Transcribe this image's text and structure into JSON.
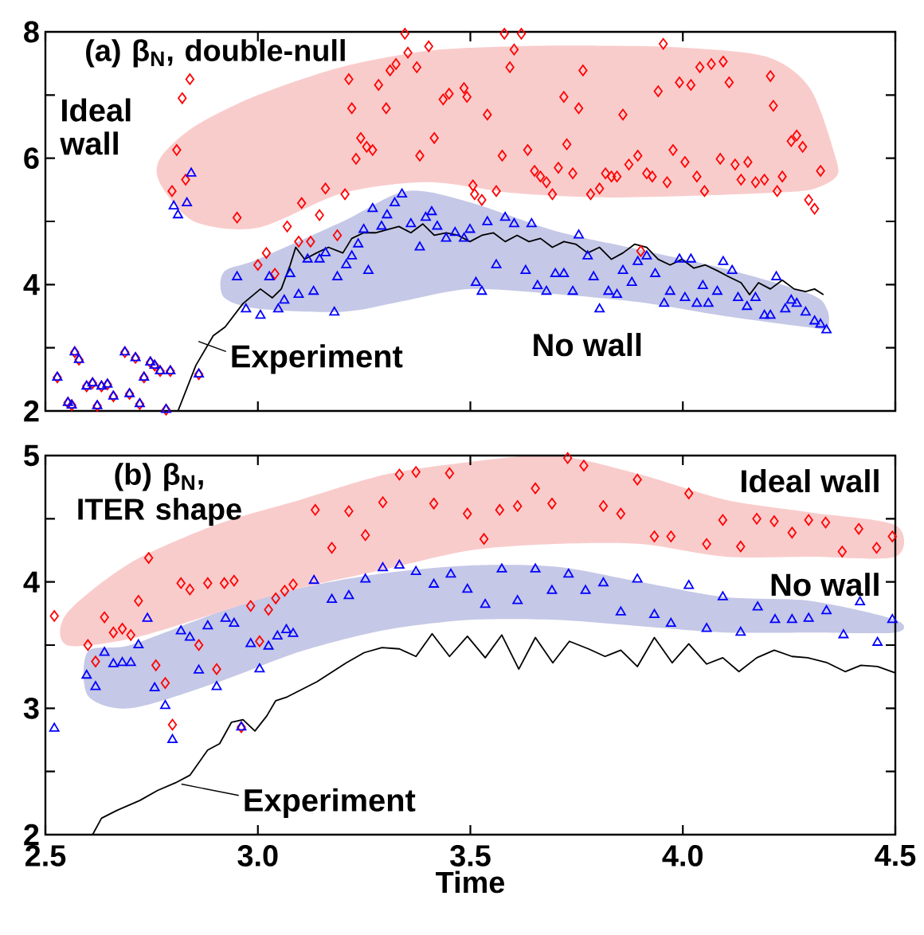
{
  "chart_data": [
    {
      "type": "scatter",
      "title": "(a) β$_{N}$, double-null",
      "annotations": [
        "Ideal wall",
        "No wall",
        "Experiment"
      ],
      "xlim": [
        2.5,
        4.5
      ],
      "ylim": [
        2,
        8
      ],
      "tick_labels": "y",
      "xticks": [
        {
          "value": 2.5,
          "label": null
        },
        {
          "value": 3.0,
          "label": null
        },
        {
          "value": 3.5,
          "label": null
        },
        {
          "value": 4.0,
          "label": null
        },
        {
          "value": 4.5,
          "label": null
        }
      ],
      "yticks": [
        2,
        {
          "value": 3,
          "label": null
        },
        4,
        {
          "value": 5,
          "label": null
        },
        6,
        {
          "value": 7,
          "label": null
        },
        8
      ],
      "series": [
        {
          "color": "#ff0000",
          "marker": "diamond",
          "x": [
            2.528,
            2.553,
            2.562,
            2.569,
            2.579,
            2.597,
            2.611,
            2.622,
            2.632,
            2.646,
            2.66,
            2.687,
            2.698,
            2.712,
            2.722,
            2.732,
            2.747,
            2.757,
            2.77,
            2.784,
            2.794,
            2.861,
            2.798,
            2.809,
            2.822,
            2.84,
            2.83,
            2.951,
            3.0,
            3.02,
            3.04,
            3.069,
            3.096,
            3.103,
            3.124,
            3.145,
            3.159,
            3.187,
            3.205,
            3.214,
            3.221,
            3.231,
            3.242,
            3.256,
            3.27,
            3.284,
            3.302,
            3.311,
            3.325,
            3.346,
            3.353,
            3.374,
            3.381,
            3.402,
            3.415,
            3.436,
            3.45,
            3.485,
            3.492,
            3.506,
            3.51,
            3.527,
            3.54,
            3.561,
            3.575,
            3.58,
            3.593,
            3.603,
            3.62,
            3.635,
            3.651,
            3.665,
            3.679,
            3.693,
            3.707,
            3.72,
            3.727,
            3.741,
            3.755,
            3.765,
            3.783,
            3.804,
            3.818,
            3.832,
            3.845,
            3.859,
            3.873,
            3.894,
            3.901,
            3.915,
            3.928,
            3.942,
            3.954,
            3.963,
            3.977,
            3.992,
            4.005,
            4.019,
            4.033,
            4.04,
            4.051,
            4.067,
            4.088,
            4.095,
            4.109,
            4.123,
            4.137,
            4.153,
            4.171,
            4.192,
            4.206,
            4.213,
            4.222,
            4.234,
            4.255,
            4.268,
            4.282,
            4.296,
            4.31,
            4.324
          ],
          "values": [
            2.53,
            2.13,
            2.09,
            2.93,
            2.81,
            2.39,
            2.44,
            2.08,
            2.39,
            2.42,
            2.23,
            2.93,
            2.27,
            2.84,
            2.11,
            2.53,
            2.77,
            2.72,
            2.63,
            2.02,
            2.63,
            2.58,
            5.48,
            6.13,
            6.95,
            7.25,
            5.66,
            5.06,
            4.31,
            4.5,
            4.17,
            4.92,
            4.68,
            5.29,
            4.68,
            5.1,
            5.52,
            4.78,
            5.43,
            7.25,
            6.79,
            5.99,
            6.32,
            6.18,
            6.13,
            7.16,
            6.79,
            7.39,
            7.49,
            7.97,
            7.67,
            7.44,
            6.04,
            7.77,
            6.32,
            6.93,
            7.02,
            7.11,
            6.97,
            5.57,
            5.43,
            5.34,
            6.69,
            5.48,
            6.04,
            7.97,
            7.44,
            7.72,
            7.97,
            6.13,
            5.8,
            5.71,
            5.62,
            5.43,
            5.85,
            6.97,
            6.22,
            5.76,
            6.79,
            7.39,
            5.43,
            5.52,
            5.76,
            5.71,
            5.71,
            6.69,
            5.9,
            6.04,
            4.53,
            5.76,
            5.71,
            7.06,
            7.81,
            5.62,
            6.13,
            7.2,
            5.94,
            7.16,
            5.71,
            7.44,
            5.48,
            7.49,
            5.99,
            7.53,
            7.2,
            5.9,
            5.66,
            5.94,
            5.62,
            5.66,
            7.3,
            6.83,
            5.48,
            5.71,
            6.27,
            6.36,
            6.18,
            5.34,
            5.2,
            5.8
          ]
        },
        {
          "color": "#0000ff",
          "marker": "triangle",
          "x": [
            2.528,
            2.553,
            2.562,
            2.569,
            2.579,
            2.597,
            2.611,
            2.622,
            2.632,
            2.646,
            2.66,
            2.687,
            2.698,
            2.712,
            2.722,
            2.732,
            2.747,
            2.757,
            2.77,
            2.784,
            2.794,
            2.861,
            2.802,
            2.812,
            2.833,
            2.843,
            2.951,
            2.972,
            3.006,
            3.027,
            3.048,
            3.062,
            3.076,
            3.096,
            3.117,
            3.131,
            3.145,
            3.159,
            3.18,
            3.187,
            3.208,
            3.221,
            3.236,
            3.249,
            3.26,
            3.27,
            3.291,
            3.304,
            3.322,
            3.339,
            3.36,
            3.381,
            3.395,
            3.409,
            3.422,
            3.443,
            3.464,
            3.485,
            3.499,
            3.513,
            3.527,
            3.54,
            3.561,
            3.582,
            3.603,
            3.63,
            3.644,
            3.658,
            3.679,
            3.7,
            3.72,
            3.741,
            3.755,
            3.776,
            3.79,
            3.804,
            3.825,
            3.845,
            3.859,
            3.88,
            3.894,
            3.915,
            3.935,
            3.956,
            3.97,
            3.992,
            4.005,
            4.019,
            4.033,
            4.047,
            4.06,
            4.081,
            4.095,
            4.116,
            4.13,
            4.151,
            4.171,
            4.192,
            4.206,
            4.22,
            4.241,
            4.255,
            4.268,
            4.289,
            4.31,
            4.324,
            4.338
          ],
          "values": [
            2.53,
            2.13,
            2.09,
            2.93,
            2.81,
            2.39,
            2.44,
            2.08,
            2.39,
            2.42,
            2.23,
            2.93,
            2.27,
            2.84,
            2.11,
            2.53,
            2.77,
            2.72,
            2.63,
            2.02,
            2.63,
            2.58,
            5.24,
            5.1,
            5.29,
            5.76,
            4.12,
            3.61,
            3.51,
            4.12,
            3.61,
            3.75,
            4.17,
            3.84,
            4.4,
            3.89,
            4.4,
            4.5,
            3.56,
            4.12,
            4.31,
            4.45,
            4.64,
            4.87,
            4.22,
            5.2,
            4.92,
            5.1,
            5.29,
            5.43,
            4.96,
            4.59,
            5.06,
            5.15,
            4.92,
            4.73,
            4.82,
            4.73,
            4.87,
            4.03,
            3.89,
            4.99,
            4.31,
            5.06,
            4.96,
            4.22,
            4.96,
            3.98,
            3.89,
            4.17,
            4.17,
            3.89,
            4.78,
            4.45,
            4.12,
            3.61,
            3.89,
            3.84,
            4.22,
            4.03,
            4.36,
            4.45,
            4.17,
            3.7,
            3.89,
            4.4,
            3.79,
            4.4,
            3.7,
            3.98,
            3.7,
            3.89,
            4.36,
            4.22,
            3.79,
            3.65,
            3.79,
            3.51,
            3.51,
            4.12,
            3.61,
            3.75,
            3.7,
            3.56,
            3.42,
            3.37,
            3.28
          ]
        },
        {
          "type": "line",
          "color": "#000000",
          "x": [
            2.812,
            2.854,
            2.895,
            2.923,
            2.965,
            3.006,
            3.034,
            3.055,
            3.076,
            3.089,
            3.11,
            3.138,
            3.166,
            3.2,
            3.221,
            3.249,
            3.277,
            3.304,
            3.332,
            3.36,
            3.388,
            3.415,
            3.443,
            3.471,
            3.499,
            3.527,
            3.554,
            3.582,
            3.61,
            3.638,
            3.665,
            3.693,
            3.72,
            3.748,
            3.776,
            3.804,
            3.832,
            3.859,
            3.887,
            3.915,
            3.942,
            3.97,
            3.998,
            4.026,
            4.053,
            4.081,
            4.109,
            4.137,
            4.157,
            4.178,
            4.206,
            4.234,
            4.262,
            4.289,
            4.31,
            4.331
          ],
          "values": [
            2.0,
            2.72,
            3.19,
            3.33,
            3.7,
            3.93,
            3.79,
            3.93,
            4.31,
            4.59,
            4.4,
            4.5,
            4.59,
            4.5,
            4.73,
            4.82,
            4.82,
            4.87,
            4.92,
            4.82,
            4.96,
            4.78,
            4.82,
            4.78,
            4.68,
            4.78,
            4.82,
            4.68,
            4.78,
            4.68,
            4.73,
            4.59,
            4.68,
            4.64,
            4.5,
            4.59,
            4.4,
            4.5,
            4.64,
            4.59,
            4.4,
            4.31,
            4.4,
            4.26,
            4.31,
            4.22,
            4.12,
            4.03,
            3.84,
            4.03,
            3.93,
            4.07,
            3.93,
            3.89,
            3.93,
            3.84
          ]
        }
      ]
    },
    {
      "type": "scatter",
      "title": "(b) β$_{N}$, ITER shape",
      "annotations": [
        "Ideal wall",
        "No wall",
        "Experiment"
      ],
      "xlabel": "Time",
      "xlim": [
        2.5,
        4.5
      ],
      "ylim": [
        2,
        5
      ],
      "xticks": [
        {
          "value": 2.5,
          "label": "2.5"
        },
        {
          "value": 3.0,
          "label": "3.0"
        },
        {
          "value": 3.5,
          "label": "3.5"
        },
        {
          "value": 4.0,
          "label": "4.0"
        },
        {
          "value": 4.5,
          "label": "4.5"
        }
      ],
      "yticks": [
        2,
        {
          "value": 2.5,
          "label": null
        },
        3,
        {
          "value": 3.5,
          "label": null
        },
        4,
        {
          "value": 4.5,
          "label": null
        },
        5
      ],
      "series": [
        {
          "color": "#ff0000",
          "marker": "diamond",
          "x": [
            2.521,
            2.6,
            2.618,
            2.639,
            2.66,
            2.681,
            2.701,
            2.719,
            2.743,
            2.76,
            2.782,
            2.799,
            2.819,
            2.84,
            2.861,
            2.882,
            2.903,
            2.921,
            2.944,
            2.961,
            2.983,
            3.004,
            3.025,
            3.042,
            3.063,
            3.083,
            3.135,
            3.174,
            3.214,
            3.253,
            3.294,
            3.333,
            3.372,
            3.414,
            3.451,
            3.493,
            3.532,
            3.569,
            3.611,
            3.653,
            3.692,
            3.729,
            3.767,
            3.813,
            3.854,
            3.893,
            3.933,
            3.972,
            4.014,
            4.056,
            4.094,
            4.136,
            4.174,
            4.215,
            4.257,
            4.296,
            4.336,
            4.375,
            4.414,
            4.456,
            4.493
          ],
          "values": [
            3.73,
            3.5,
            3.37,
            3.72,
            3.6,
            3.63,
            3.58,
            3.85,
            4.19,
            3.34,
            3.2,
            2.87,
            3.99,
            3.94,
            3.5,
            3.99,
            3.31,
            3.99,
            4.01,
            2.85,
            3.81,
            3.53,
            3.78,
            3.87,
            3.93,
            3.98,
            4.57,
            4.27,
            4.56,
            4.37,
            4.63,
            4.85,
            4.87,
            4.62,
            4.86,
            4.54,
            4.34,
            4.57,
            4.6,
            4.74,
            4.62,
            4.98,
            4.92,
            4.6,
            4.54,
            4.81,
            4.36,
            4.36,
            4.7,
            4.3,
            4.49,
            4.28,
            4.5,
            4.48,
            4.39,
            4.49,
            4.47,
            4.24,
            4.42,
            4.27,
            4.36
          ]
        },
        {
          "color": "#0000ff",
          "marker": "triangle",
          "x": [
            2.521,
            2.597,
            2.618,
            2.639,
            2.66,
            2.681,
            2.701,
            2.719,
            2.74,
            2.757,
            2.782,
            2.799,
            2.819,
            2.84,
            2.861,
            2.882,
            2.903,
            2.924,
            2.944,
            2.961,
            2.983,
            3.004,
            3.025,
            3.046,
            3.067,
            3.083,
            3.132,
            3.174,
            3.214,
            3.253,
            3.294,
            3.333,
            3.372,
            3.414,
            3.454,
            3.493,
            3.535,
            3.574,
            3.611,
            3.653,
            3.692,
            3.731,
            3.771,
            3.813,
            3.854,
            3.893,
            3.933,
            3.972,
            4.014,
            4.056,
            4.094,
            4.136,
            4.176,
            4.217,
            4.257,
            4.296,
            4.338,
            4.378,
            4.417,
            4.458,
            4.493
          ],
          "values": [
            2.84,
            3.26,
            3.17,
            3.44,
            3.35,
            3.36,
            3.36,
            3.5,
            3.71,
            3.16,
            3.02,
            2.75,
            3.61,
            3.56,
            3.3,
            3.65,
            3.17,
            3.71,
            3.67,
            2.85,
            3.51,
            3.31,
            3.49,
            3.57,
            3.62,
            3.59,
            4.01,
            3.86,
            3.89,
            4.02,
            4.11,
            4.13,
            4.08,
            3.98,
            4.06,
            3.94,
            3.82,
            4.1,
            3.85,
            4.1,
            3.93,
            4.06,
            3.93,
            3.99,
            3.76,
            4.02,
            3.74,
            3.67,
            3.97,
            3.63,
            3.88,
            3.6,
            3.8,
            3.7,
            3.7,
            3.71,
            3.77,
            3.58,
            3.84,
            3.52,
            3.7
          ]
        },
        {
          "type": "line",
          "color": "#000000",
          "x": [
            2.611,
            2.632,
            2.667,
            2.722,
            2.764,
            2.806,
            2.84,
            2.882,
            2.91,
            2.938,
            2.965,
            2.993,
            3.021,
            3.042,
            3.069,
            3.139,
            3.208,
            3.25,
            3.292,
            3.333,
            3.372,
            3.41,
            3.451,
            3.493,
            3.535,
            3.574,
            3.614,
            3.653,
            3.694,
            3.733,
            3.778,
            3.817,
            3.854,
            3.893,
            3.933,
            3.975,
            4.014,
            4.056,
            4.094,
            4.132,
            4.174,
            4.215,
            4.257,
            4.294,
            4.34,
            4.382,
            4.419,
            4.458,
            4.5
          ],
          "values": [
            2.0,
            2.13,
            2.19,
            2.27,
            2.35,
            2.41,
            2.47,
            2.67,
            2.72,
            2.89,
            2.91,
            2.82,
            2.94,
            3.06,
            3.09,
            3.21,
            3.36,
            3.44,
            3.48,
            3.47,
            3.41,
            3.59,
            3.41,
            3.57,
            3.4,
            3.58,
            3.31,
            3.56,
            3.36,
            3.53,
            3.47,
            3.41,
            3.46,
            3.33,
            3.56,
            3.36,
            3.51,
            3.35,
            3.4,
            3.29,
            3.4,
            3.46,
            3.41,
            3.4,
            3.36,
            3.29,
            3.34,
            3.33,
            3.28
          ]
        }
      ]
    }
  ]
}
